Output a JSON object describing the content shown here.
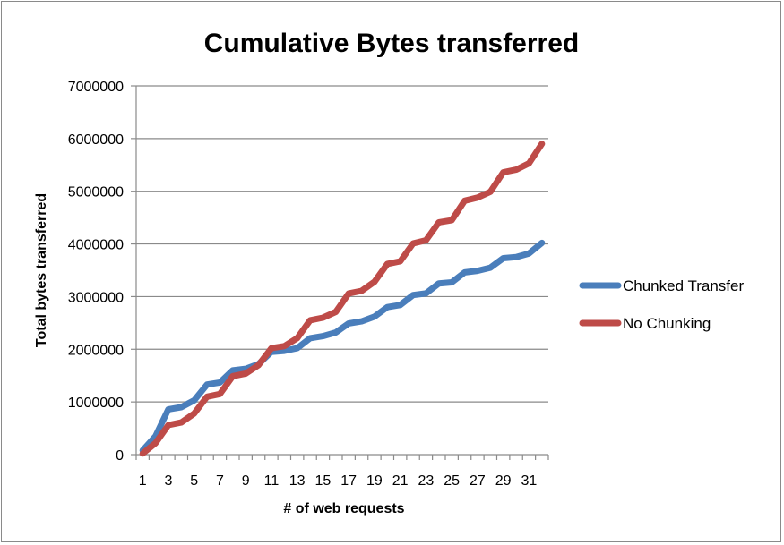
{
  "chart_data": {
    "type": "line",
    "title": "Cumulative Bytes transferred",
    "xlabel": "# of web requests",
    "ylabel": "Total bytes transferred",
    "ylim": [
      0,
      7000000
    ],
    "yticks": [
      "0",
      "1000000",
      "2000000",
      "3000000",
      "4000000",
      "5000000",
      "6000000",
      "7000000"
    ],
    "x": [
      1,
      2,
      3,
      4,
      5,
      6,
      7,
      8,
      9,
      10,
      11,
      12,
      13,
      14,
      15,
      16,
      17,
      18,
      19,
      20,
      21,
      22,
      23,
      24,
      25,
      26,
      27,
      28,
      29,
      30,
      31,
      32
    ],
    "xticks": [
      "1",
      "3",
      "5",
      "7",
      "9",
      "11",
      "13",
      "15",
      "17",
      "19",
      "21",
      "23",
      "25",
      "27",
      "29",
      "31"
    ],
    "grid": true,
    "legend": "right",
    "series": [
      {
        "name": "Chunked Transfer",
        "color": "#4a7ebb",
        "values": [
          80000,
          350000,
          860000,
          900000,
          1030000,
          1330000,
          1370000,
          1600000,
          1630000,
          1720000,
          1950000,
          1970000,
          2020000,
          2210000,
          2250000,
          2320000,
          2490000,
          2530000,
          2620000,
          2800000,
          2840000,
          3030000,
          3060000,
          3250000,
          3270000,
          3460000,
          3490000,
          3550000,
          3730000,
          3750000,
          3820000,
          4020000
        ]
      },
      {
        "name": "No Chunking",
        "color": "#be4b48",
        "values": [
          20000,
          220000,
          560000,
          610000,
          780000,
          1100000,
          1150000,
          1490000,
          1540000,
          1700000,
          2020000,
          2060000,
          2210000,
          2550000,
          2600000,
          2710000,
          3060000,
          3110000,
          3280000,
          3620000,
          3670000,
          4010000,
          4070000,
          4410000,
          4450000,
          4820000,
          4880000,
          4990000,
          5360000,
          5410000,
          5530000,
          5900000
        ]
      }
    ]
  }
}
